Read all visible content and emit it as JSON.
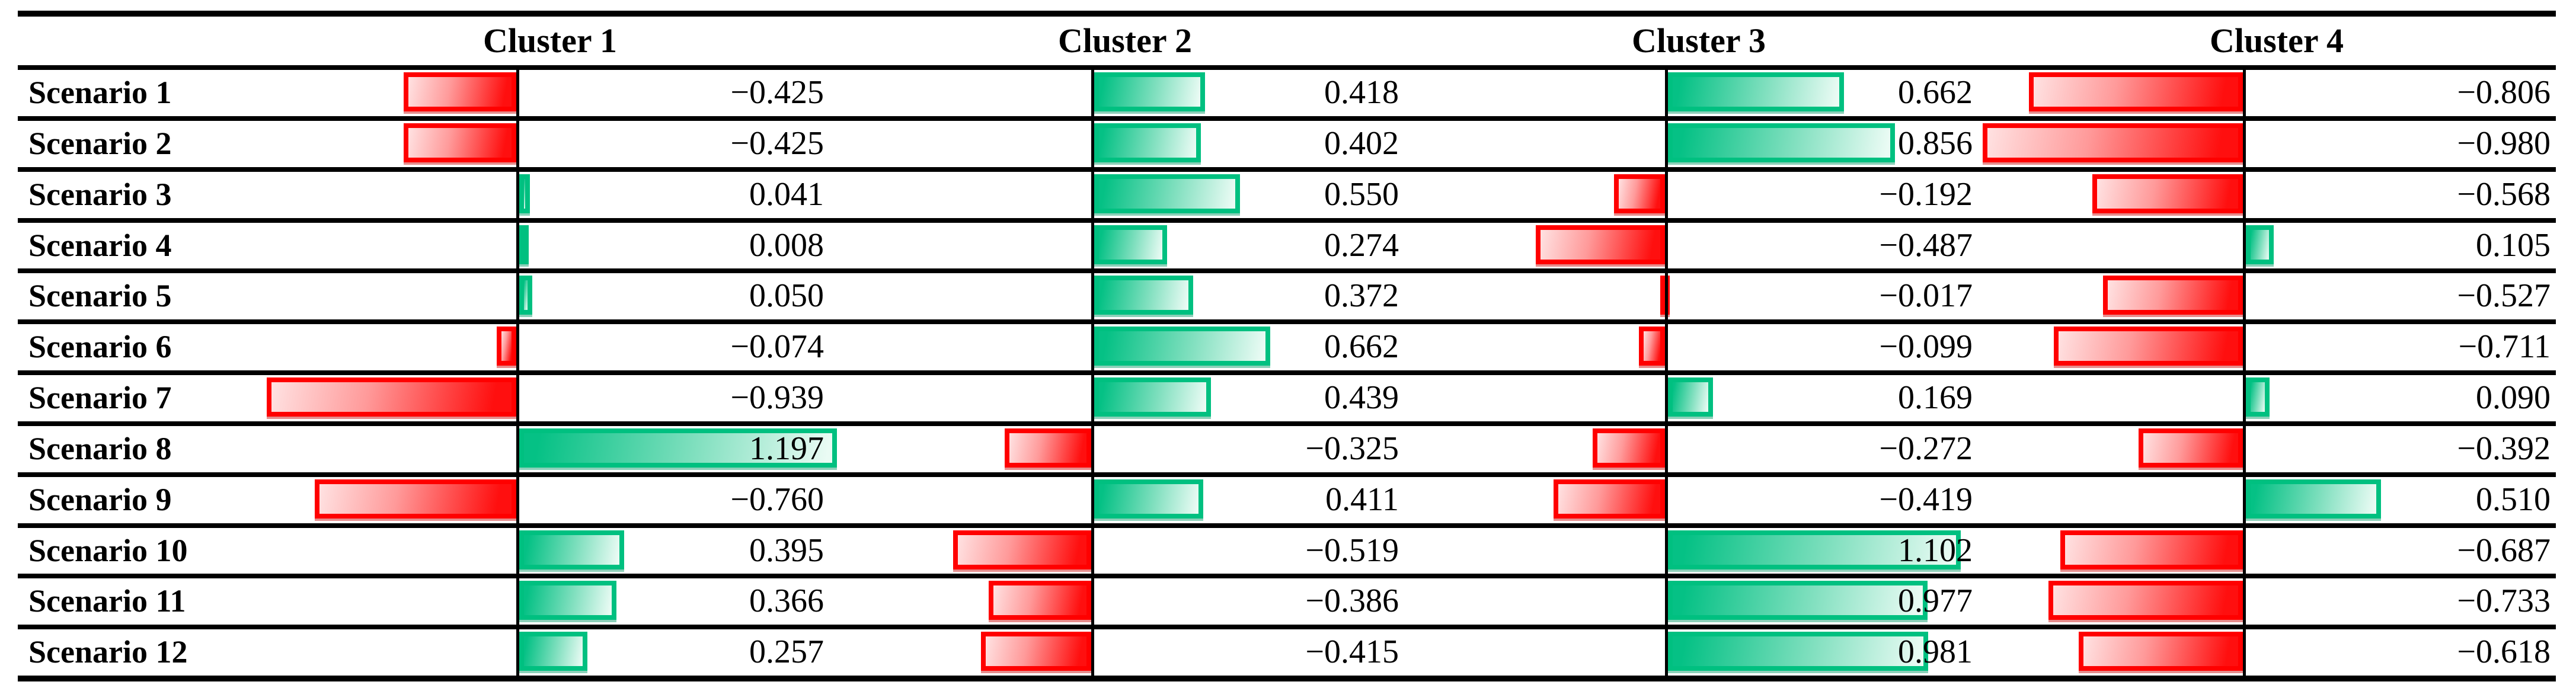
{
  "figure": {
    "kind": "cluster-scenario data-bar table",
    "corner_label": "",
    "columns": [
      "Cluster 1",
      "Cluster 2",
      "Cluster 3",
      "Cluster 4"
    ],
    "row_labels": [
      "Scenario 1",
      "Scenario 2",
      "Scenario 3",
      "Scenario 4",
      "Scenario 5",
      "Scenario 6",
      "Scenario 7",
      "Scenario 8",
      "Scenario 9",
      "Scenario 10",
      "Scenario 11",
      "Scenario 12"
    ]
  },
  "chart_data": {
    "type": "bar",
    "orientation": "horizontal",
    "title": "",
    "xlabel": "",
    "ylabel": "",
    "categories": [
      "Scenario 1",
      "Scenario 2",
      "Scenario 3",
      "Scenario 4",
      "Scenario 5",
      "Scenario 6",
      "Scenario 7",
      "Scenario 8",
      "Scenario 9",
      "Scenario 10",
      "Scenario 11",
      "Scenario 12"
    ],
    "series": [
      {
        "name": "Cluster 1",
        "values": [
          -0.425,
          -0.425,
          0.041,
          0.008,
          0.05,
          -0.074,
          -0.939,
          1.197,
          -0.76,
          0.395,
          0.366,
          0.257
        ]
      },
      {
        "name": "Cluster 2",
        "values": [
          0.418,
          0.402,
          0.55,
          0.274,
          0.372,
          0.662,
          0.439,
          -0.325,
          0.411,
          -0.519,
          -0.386,
          -0.415
        ]
      },
      {
        "name": "Cluster 3",
        "values": [
          0.662,
          0.856,
          -0.192,
          -0.487,
          -0.017,
          -0.099,
          0.169,
          -0.272,
          -0.419,
          1.102,
          0.977,
          0.981
        ]
      },
      {
        "name": "Cluster 4",
        "values": [
          -0.806,
          -0.98,
          -0.568,
          0.105,
          -0.527,
          -0.711,
          0.09,
          -0.392,
          0.51,
          -0.687,
          -0.733,
          -0.618
        ]
      }
    ],
    "value_decimals": 3,
    "positive_bar_color": "#00c080",
    "negative_bar_color": "#ff0000",
    "bar_style": "gradient fades away from per-cluster vertical baseline axis",
    "axis_note": "each cluster has its own vertical zero baseline; negative bars extend left (red), positive bars extend right (green)",
    "grid": "horizontal black row separators, black vertical baselines",
    "legend_position": "none"
  }
}
